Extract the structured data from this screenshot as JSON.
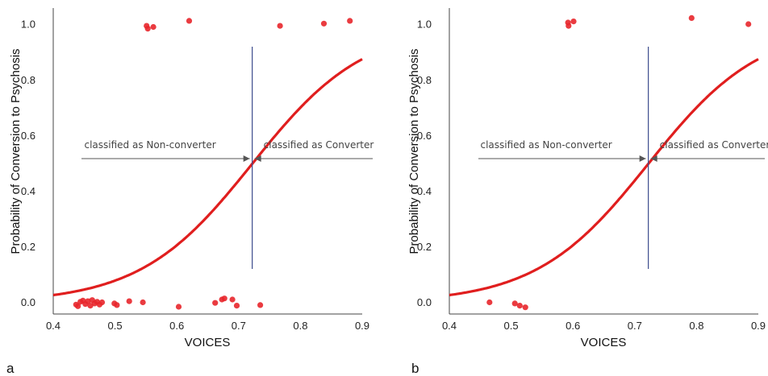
{
  "chart_data": [
    {
      "type": "scatter",
      "panel_label": "a",
      "xlabel": "VOICES",
      "ylabel": "Probability of Conversion to Psychosis",
      "xlim": [
        0.4,
        0.9
      ],
      "ylim": [
        -0.04,
        1.06
      ],
      "xticks": [
        "0.4",
        "0.5",
        "0.6",
        "0.7",
        "0.8",
        "0.9"
      ],
      "yticks": [
        "0.0",
        "0.2",
        "0.4",
        "0.6",
        "0.8",
        "1.0"
      ],
      "threshold_x": 0.722,
      "curve": {
        "type": "logistic",
        "midpoint_x": 0.722,
        "slope": 11
      },
      "annotations": {
        "left": "classified as Non-converter",
        "right": "classified as Converter"
      },
      "colors": {
        "points": "#e8262b",
        "curve": "#e01e1e",
        "threshold": "#3a4a8c"
      },
      "points": [
        {
          "x": 0.437,
          "y": -0.006
        },
        {
          "x": 0.44,
          "y": -0.012
        },
        {
          "x": 0.444,
          "y": 0.004
        },
        {
          "x": 0.448,
          "y": 0.008
        },
        {
          "x": 0.452,
          "y": -0.004
        },
        {
          "x": 0.456,
          "y": 0.006
        },
        {
          "x": 0.46,
          "y": -0.01
        },
        {
          "x": 0.463,
          "y": 0.01
        },
        {
          "x": 0.467,
          "y": -0.002
        },
        {
          "x": 0.471,
          "y": 0.004
        },
        {
          "x": 0.475,
          "y": -0.006
        },
        {
          "x": 0.479,
          "y": 0.002
        },
        {
          "x": 0.499,
          "y": -0.002
        },
        {
          "x": 0.503,
          "y": -0.008
        },
        {
          "x": 0.523,
          "y": 0.006
        },
        {
          "x": 0.545,
          "y": 0.002
        },
        {
          "x": 0.603,
          "y": -0.014
        },
        {
          "x": 0.662,
          "y": 0.0
        },
        {
          "x": 0.673,
          "y": 0.012
        },
        {
          "x": 0.677,
          "y": 0.016
        },
        {
          "x": 0.69,
          "y": 0.012
        },
        {
          "x": 0.697,
          "y": -0.01
        },
        {
          "x": 0.735,
          "y": -0.008
        },
        {
          "x": 0.551,
          "y": 0.996
        },
        {
          "x": 0.553,
          "y": 0.986
        },
        {
          "x": 0.562,
          "y": 0.992
        },
        {
          "x": 0.62,
          "y": 1.014
        },
        {
          "x": 0.767,
          "y": 0.996
        },
        {
          "x": 0.838,
          "y": 1.004
        },
        {
          "x": 0.88,
          "y": 1.014
        }
      ]
    },
    {
      "type": "scatter",
      "panel_label": "b",
      "xlabel": "VOICES",
      "ylabel": "Probability of Conversion to Psychosis",
      "xlim": [
        0.4,
        0.9
      ],
      "ylim": [
        -0.04,
        1.06
      ],
      "xticks": [
        "0.4",
        "0.5",
        "0.6",
        "0.7",
        "0.8",
        "0.9"
      ],
      "yticks": [
        "0.0",
        "0.2",
        "0.4",
        "0.6",
        "0.8",
        "1.0"
      ],
      "threshold_x": 0.722,
      "curve": {
        "type": "logistic",
        "midpoint_x": 0.722,
        "slope": 11
      },
      "annotations": {
        "left": "classified as Non-converter",
        "right": "classified as Converter"
      },
      "colors": {
        "points": "#e8262b",
        "curve": "#e01e1e",
        "threshold": "#3a4a8c"
      },
      "points": [
        {
          "x": 0.465,
          "y": 0.002
        },
        {
          "x": 0.506,
          "y": -0.002
        },
        {
          "x": 0.514,
          "y": -0.01
        },
        {
          "x": 0.523,
          "y": -0.016
        },
        {
          "x": 0.592,
          "y": 1.008
        },
        {
          "x": 0.593,
          "y": 0.996
        },
        {
          "x": 0.601,
          "y": 1.012
        },
        {
          "x": 0.792,
          "y": 1.024
        },
        {
          "x": 0.884,
          "y": 1.002
        }
      ]
    }
  ]
}
